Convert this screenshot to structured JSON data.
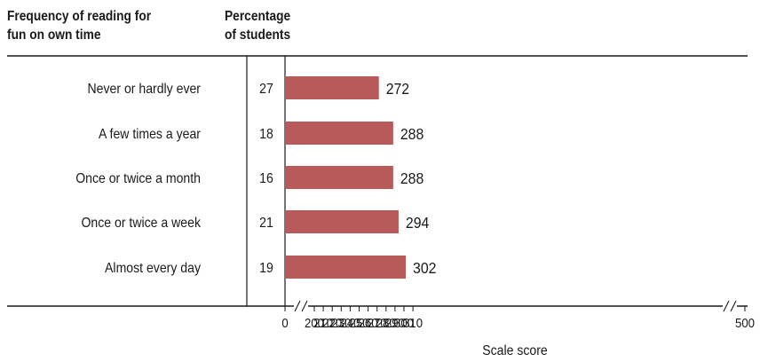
{
  "header": {
    "category_lines": [
      "Frequency of reading for",
      "fun on own time"
    ],
    "percent_lines": [
      "Percentage",
      "of students"
    ]
  },
  "chart_data": {
    "type": "bar",
    "orientation": "horizontal",
    "categories": [
      "Never or hardly ever",
      "A few times a year",
      "Once or twice a month",
      "Once or twice a week",
      "Almost every day"
    ],
    "percentages": [
      "27",
      "18",
      "16",
      "21",
      "19"
    ],
    "values": [
      272,
      288,
      288,
      294,
      302
    ],
    "xlabel": "Scale score",
    "x_ticks": [
      "0",
      "200",
      "210",
      "220",
      "230",
      "240",
      "250",
      "260",
      "270",
      "280",
      "290",
      "300",
      "310",
      "500"
    ],
    "axis_breaks": "0 to 200 and 310 to 500",
    "bar_color": "#b85a59"
  }
}
